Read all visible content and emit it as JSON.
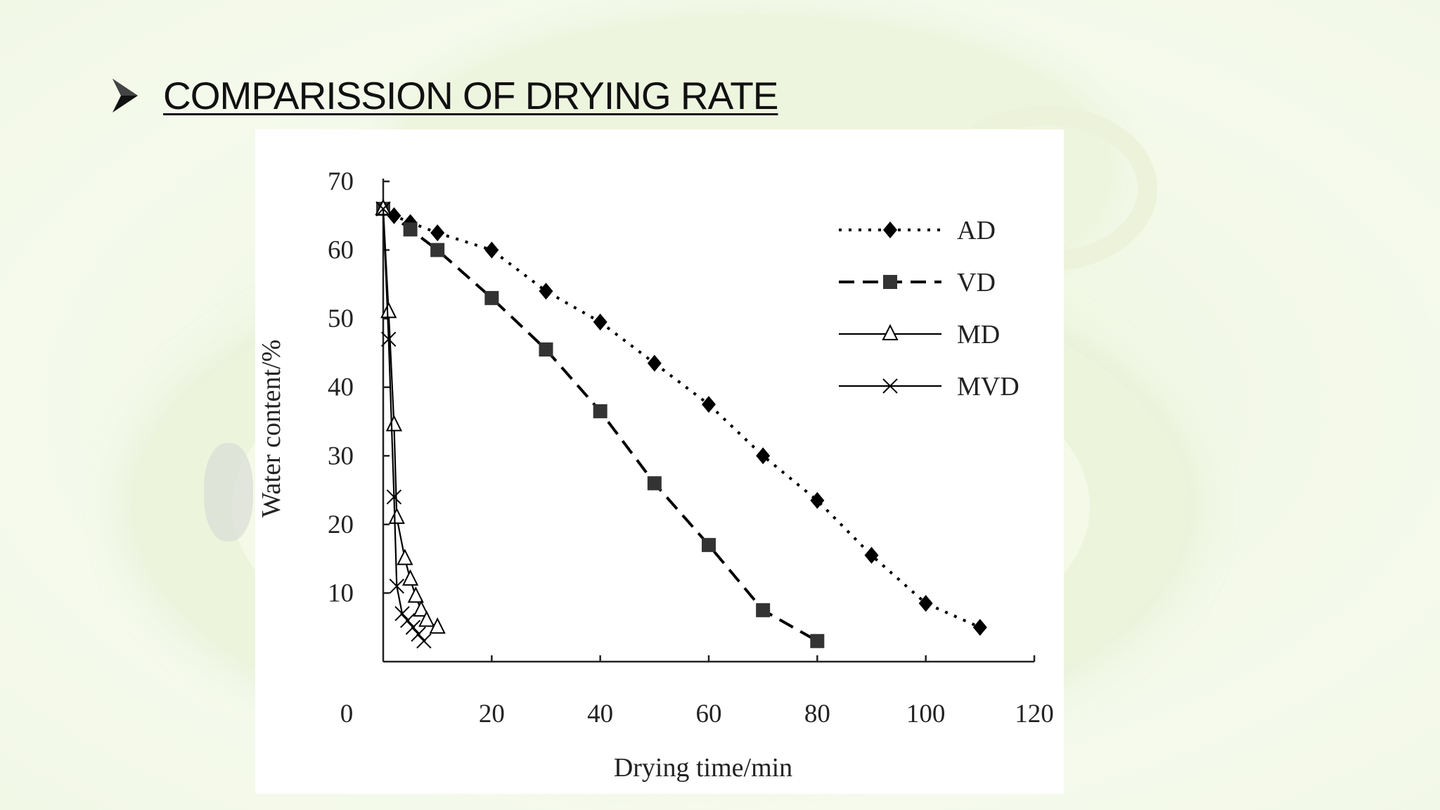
{
  "slide": {
    "title": "COMPARISSION OF DRYING RATE"
  },
  "chart_data": {
    "type": "line",
    "xlabel": "Drying time/min",
    "ylabel": "Water content/%",
    "xlim": [
      0,
      120
    ],
    "ylim": [
      0,
      70
    ],
    "x_ticks": [
      "0",
      "20",
      "40",
      "60",
      "80",
      "100",
      "120"
    ],
    "y_ticks": [
      "10",
      "20",
      "30",
      "40",
      "50",
      "60",
      "70"
    ],
    "legend_position": "top-right",
    "grid": false,
    "series": [
      {
        "name": "AD",
        "style": "dotted",
        "marker": "diamond",
        "x": [
          0,
          2,
          5,
          10,
          20,
          30,
          40,
          50,
          60,
          70,
          80,
          90,
          100,
          110
        ],
        "y": [
          66,
          65,
          64,
          62.5,
          60,
          54,
          49.5,
          43.5,
          37.5,
          30,
          23.5,
          15.5,
          8.5,
          5
        ]
      },
      {
        "name": "VD",
        "style": "dashed",
        "marker": "square",
        "x": [
          0,
          5,
          10,
          20,
          30,
          40,
          50,
          60,
          70,
          80
        ],
        "y": [
          66,
          63,
          60,
          53,
          45.5,
          36.5,
          26,
          17,
          7.5,
          3
        ]
      },
      {
        "name": "MD",
        "style": "solid",
        "marker": "triangle",
        "x": [
          0,
          1,
          2,
          2.5,
          4,
          5,
          6,
          7,
          8,
          10
        ],
        "y": [
          66,
          51,
          34.5,
          21,
          15,
          12,
          9.5,
          7.5,
          6,
          5
        ]
      },
      {
        "name": "MVD",
        "style": "solid",
        "marker": "x",
        "x": [
          0,
          1,
          2,
          2.5,
          3.5,
          4.5,
          5.5,
          6.5,
          7.5
        ],
        "y": [
          66,
          47,
          24,
          11,
          7,
          6,
          5,
          4,
          3
        ]
      }
    ]
  }
}
